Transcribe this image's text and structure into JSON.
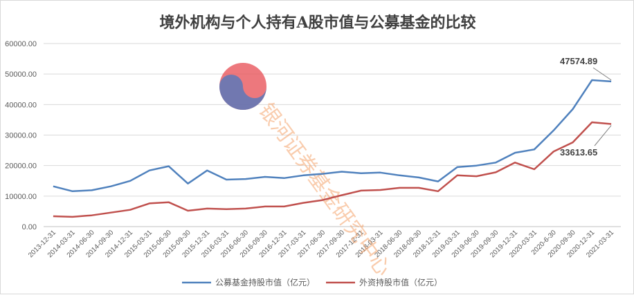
{
  "chart_data": {
    "type": "line",
    "title": "境外机构与个人持有A股市值与公募基金的比较",
    "ylim": [
      0,
      60000
    ],
    "y_ticks": [
      "0.00",
      "10000.00",
      "20000.00",
      "30000.00",
      "40000.00",
      "50000.00",
      "60000.00"
    ],
    "grid": true,
    "legend_position": "bottom",
    "categories": [
      "2013-12-31",
      "2014-03-31",
      "2014-06-30",
      "2014-09-30",
      "2014-12-31",
      "2015-03-31",
      "2015-06-30",
      "2015-09-30",
      "2015-12-31",
      "2016-03-31",
      "2016-06-30",
      "2016-09-30",
      "2016-12-31",
      "2017-03-31",
      "2017-06-30",
      "2017-09-30",
      "2017-12-31",
      "2018-03-31",
      "2018-06-30",
      "2018-09-30",
      "2018-12-31",
      "2019-03-31",
      "2019-06-30",
      "2019-09-30",
      "2019-12-31",
      "2020-03-31",
      "2020-6-30",
      "2020-09-30",
      "2020-12-31",
      "2021-03-31"
    ],
    "series": [
      {
        "name": "公募基金持股市值（亿元）",
        "color": "#4f81bd",
        "values": [
          13200,
          11600,
          11900,
          13200,
          15000,
          18400,
          19800,
          14100,
          18400,
          15400,
          15600,
          16300,
          15900,
          16800,
          17300,
          18000,
          17500,
          17700,
          16800,
          16100,
          14800,
          19500,
          20000,
          21000,
          24200,
          25300,
          31500,
          38500,
          48000,
          47574.89
        ],
        "end_label": "47574.89"
      },
      {
        "name": "外资持股市值（亿元）",
        "color": "#c0504d",
        "values": [
          3400,
          3200,
          3700,
          4600,
          5500,
          7600,
          8000,
          5200,
          5900,
          5700,
          5900,
          6600,
          6600,
          7800,
          8700,
          10300,
          11800,
          12000,
          12700,
          12700,
          11600,
          16800,
          16500,
          17800,
          21000,
          18800,
          24600,
          27600,
          34200,
          33613.65
        ],
        "end_label": "33613.65"
      }
    ],
    "watermark": {
      "text": "银河证券基金研究中心",
      "logo_colors": [
        "#e8565c",
        "#5b78b8"
      ]
    }
  }
}
